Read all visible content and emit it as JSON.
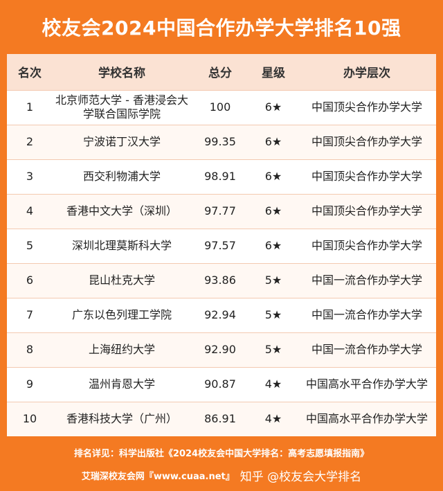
{
  "title": "校友会2024中国合作办学大学排名10强",
  "table": {
    "headers": [
      "名次",
      "学校名称",
      "总分",
      "星级",
      "办学层次"
    ],
    "rows": [
      {
        "rank": "1",
        "name": "北京师范大学 - 香港浸会大学联合国际学院",
        "score": "100",
        "stars": "6★",
        "level": "中国顶尖合作办学大学"
      },
      {
        "rank": "2",
        "name": "宁波诺丁汉大学",
        "score": "99.35",
        "stars": "6★",
        "level": "中国顶尖合作办学大学"
      },
      {
        "rank": "3",
        "name": "西交利物浦大学",
        "score": "98.91",
        "stars": "6★",
        "level": "中国顶尖合作办学大学"
      },
      {
        "rank": "4",
        "name": "香港中文大学（深圳）",
        "score": "97.77",
        "stars": "6★",
        "level": "中国顶尖合作办学大学"
      },
      {
        "rank": "5",
        "name": "深圳北理莫斯科大学",
        "score": "97.57",
        "stars": "6★",
        "level": "中国顶尖合作办学大学"
      },
      {
        "rank": "6",
        "name": "昆山杜克大学",
        "score": "93.86",
        "stars": "5★",
        "level": "中国一流合作办学大学"
      },
      {
        "rank": "7",
        "name": "广东以色列理工学院",
        "score": "92.94",
        "stars": "5★",
        "level": "中国一流合作办学大学"
      },
      {
        "rank": "8",
        "name": "上海纽约大学",
        "score": "92.90",
        "stars": "5★",
        "level": "中国一流合作办学大学"
      },
      {
        "rank": "9",
        "name": "温州肯恩大学",
        "score": "90.87",
        "stars": "4★",
        "level": "中国高水平合作办学大学"
      },
      {
        "rank": "10",
        "name": "香港科技大学（广州）",
        "score": "86.91",
        "stars": "4★",
        "level": "中国高水平合作办学大学"
      }
    ]
  },
  "footer": {
    "source": "排名详见：科学出版社《2024校友会中国大学排名：高考志愿填报指南》",
    "site": "艾瑞深校友会网『www.cuaa.net』",
    "watermark": "知乎 @校友会大学排名"
  },
  "colors": {
    "background": "#F47A22",
    "header_fill": "#FBE2D3",
    "table_fill": "#FFFFFF"
  }
}
